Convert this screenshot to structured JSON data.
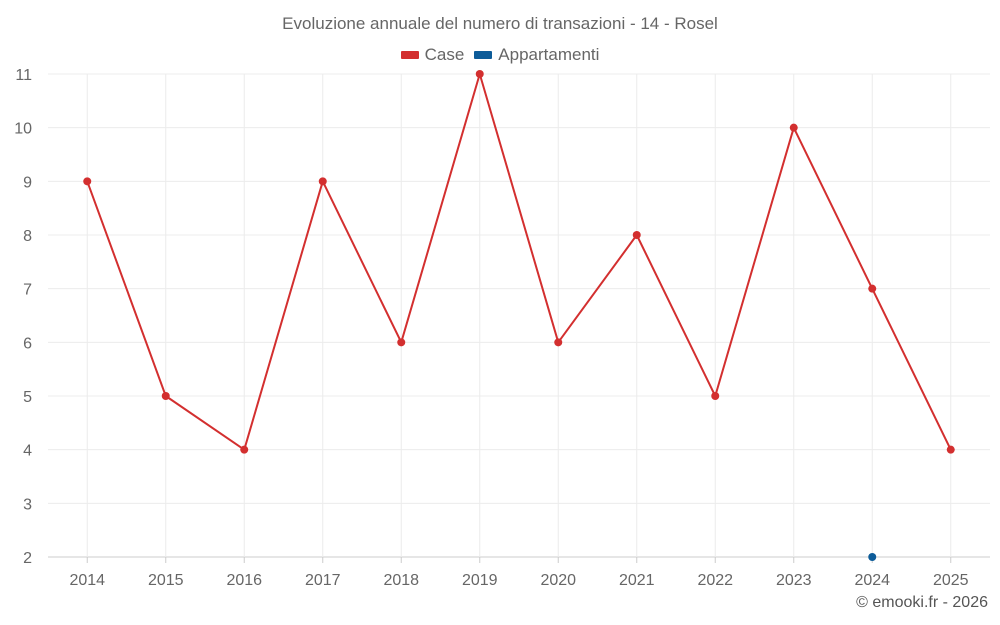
{
  "chart_data": {
    "type": "line",
    "title": "Evoluzione annuale del numero di transazioni - 14 - Rosel",
    "xlabel": "",
    "ylabel": "",
    "categories": [
      "2014",
      "2015",
      "2016",
      "2017",
      "2018",
      "2019",
      "2020",
      "2021",
      "2022",
      "2023",
      "2024",
      "2025"
    ],
    "ylim": [
      2,
      11
    ],
    "yticks": [
      "2",
      "3",
      "4",
      "5",
      "6",
      "7",
      "8",
      "9",
      "10",
      "11"
    ],
    "grid": true,
    "legend_position": "top-center",
    "series": [
      {
        "name": "Case",
        "color": "#d32f2f",
        "values": [
          9,
          5,
          4,
          9,
          6,
          11,
          6,
          8,
          5,
          10,
          7,
          4
        ]
      },
      {
        "name": "Appartamenti",
        "color": "#0d5c99",
        "values": [
          null,
          null,
          null,
          null,
          null,
          null,
          null,
          null,
          null,
          null,
          2,
          null
        ]
      }
    ]
  },
  "credits": "© emooki.fr - 2026"
}
